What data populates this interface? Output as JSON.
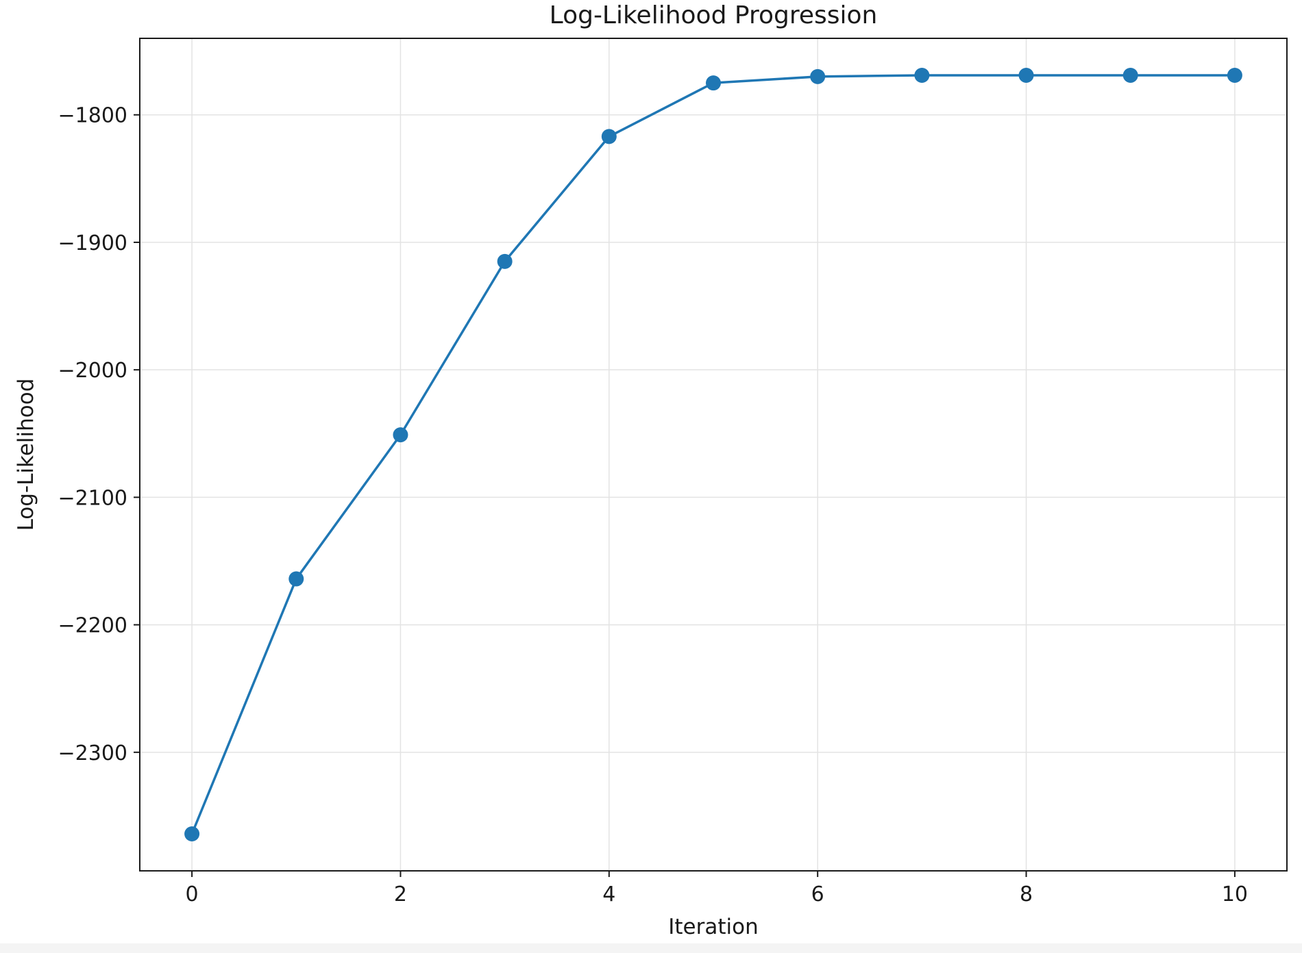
{
  "chart_data": {
    "type": "line",
    "title": "Log-Likelihood Progression",
    "xlabel": "Iteration",
    "ylabel": "Log-Likelihood",
    "x": [
      0,
      1,
      2,
      3,
      4,
      5,
      6,
      7,
      8,
      9,
      10
    ],
    "series": [
      {
        "values": [
          -2364,
          -2164,
          -2051,
          -1915,
          -1817,
          -1775,
          -1770,
          -1769,
          -1769,
          -1769,
          -1769
        ],
        "color": "#1f77b4",
        "marker": "circle"
      }
    ],
    "xlim": [
      -0.5,
      10.5
    ],
    "ylim": [
      -2393,
      -1740
    ],
    "xticks": [
      0,
      2,
      4,
      6,
      8,
      10
    ],
    "xtick_labels": [
      "0",
      "2",
      "4",
      "6",
      "8",
      "10"
    ],
    "yticks": [
      -1800,
      -1900,
      -2000,
      -2100,
      -2200,
      -2300
    ],
    "ytick_labels": [
      "−1800",
      "−1900",
      "−2000",
      "−2100",
      "−2200",
      "−2300"
    ],
    "grid": true,
    "grid_color": "#e3e3e3",
    "axis_color": "#1a1a1a"
  }
}
